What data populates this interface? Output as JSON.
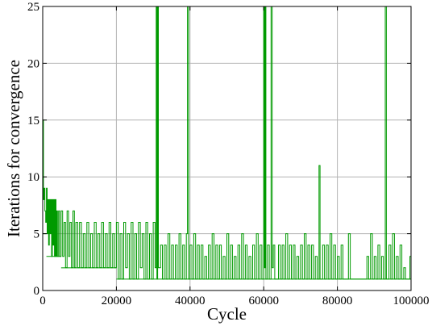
{
  "chart_data": {
    "type": "line",
    "title": "",
    "xlabel": "Cycle",
    "ylabel": "Iterations for convergence",
    "xlim": [
      0,
      100000
    ],
    "ylim": [
      0,
      25
    ],
    "xticks": [
      0,
      20000,
      40000,
      60000,
      80000,
      100000
    ],
    "yticks": [
      0,
      5,
      10,
      15,
      20,
      25
    ],
    "x_tick_labels": [
      "0",
      "20000",
      "40000",
      "60000",
      "80000",
      "100000"
    ],
    "y_tick_labels": [
      "0",
      "5",
      "10",
      "15",
      "20",
      "25"
    ],
    "grid": true,
    "legend": "none",
    "series_color": "#009a00",
    "baseline": [
      {
        "x_start": 0,
        "x_end": 1000,
        "value": 5
      },
      {
        "x_start": 1000,
        "x_end": 5000,
        "value": 3
      },
      {
        "x_start": 5000,
        "x_end": 20000,
        "value": 2
      },
      {
        "x_start": 20000,
        "x_end": 100000,
        "value": 1
      }
    ],
    "series": [
      {
        "points": [
          [
            0,
            15
          ],
          [
            200,
            8
          ],
          [
            400,
            9
          ],
          [
            600,
            7
          ],
          [
            800,
            6
          ],
          [
            1000,
            9
          ],
          [
            1200,
            5
          ],
          [
            1400,
            8
          ],
          [
            1600,
            4
          ],
          [
            1800,
            8
          ],
          [
            2000,
            5
          ],
          [
            2200,
            8
          ],
          [
            2400,
            3
          ],
          [
            2600,
            8
          ],
          [
            2800,
            4
          ],
          [
            3000,
            8
          ],
          [
            3200,
            3
          ],
          [
            3400,
            8
          ],
          [
            3600,
            3
          ],
          [
            3800,
            7
          ],
          [
            4000,
            3
          ],
          [
            4300,
            7
          ],
          [
            4600,
            3
          ],
          [
            5000,
            7
          ],
          [
            5400,
            3
          ],
          [
            5800,
            6
          ],
          [
            6200,
            2
          ],
          [
            6600,
            7
          ],
          [
            7000,
            3
          ],
          [
            7400,
            6
          ],
          [
            7800,
            2
          ],
          [
            8200,
            7
          ],
          [
            8600,
            2
          ],
          [
            9000,
            6
          ],
          [
            9500,
            2
          ],
          [
            10000,
            6
          ],
          [
            10500,
            2
          ],
          [
            11000,
            5
          ],
          [
            11500,
            2
          ],
          [
            12000,
            6
          ],
          [
            12500,
            2
          ],
          [
            13000,
            5
          ],
          [
            13500,
            2
          ],
          [
            14000,
            6
          ],
          [
            14500,
            2
          ],
          [
            15000,
            5
          ],
          [
            15500,
            2
          ],
          [
            16000,
            6
          ],
          [
            16500,
            2
          ],
          [
            17000,
            5
          ],
          [
            17500,
            2
          ],
          [
            18000,
            6
          ],
          [
            18500,
            2
          ],
          [
            19000,
            5
          ],
          [
            19500,
            2
          ],
          [
            20000,
            6
          ],
          [
            20500,
            1
          ],
          [
            21000,
            5
          ],
          [
            21500,
            1
          ],
          [
            22000,
            6
          ],
          [
            22500,
            2
          ],
          [
            23000,
            5
          ],
          [
            23500,
            1
          ],
          [
            24000,
            6
          ],
          [
            24500,
            1
          ],
          [
            25000,
            5
          ],
          [
            25500,
            1
          ],
          [
            26000,
            6
          ],
          [
            26500,
            2
          ],
          [
            27000,
            5
          ],
          [
            27500,
            1
          ],
          [
            28000,
            6
          ],
          [
            28500,
            1
          ],
          [
            29000,
            5
          ],
          [
            29500,
            1
          ],
          [
            30000,
            6
          ],
          [
            30500,
            2
          ],
          [
            30800,
            25
          ],
          [
            31000,
            1
          ],
          [
            31200,
            25
          ],
          [
            31400,
            2
          ],
          [
            32000,
            4
          ],
          [
            32500,
            1
          ],
          [
            33000,
            4
          ],
          [
            33500,
            1
          ],
          [
            34000,
            5
          ],
          [
            34500,
            1
          ],
          [
            35000,
            4
          ],
          [
            35500,
            1
          ],
          [
            36000,
            4
          ],
          [
            36500,
            1
          ],
          [
            37000,
            5
          ],
          [
            37500,
            1
          ],
          [
            38000,
            4
          ],
          [
            38500,
            1
          ],
          [
            39000,
            5
          ],
          [
            39300,
            25
          ],
          [
            39600,
            1
          ],
          [
            40000,
            4
          ],
          [
            40500,
            1
          ],
          [
            41000,
            5
          ],
          [
            41500,
            1
          ],
          [
            42000,
            4
          ],
          [
            42500,
            1
          ],
          [
            43000,
            4
          ],
          [
            43500,
            1
          ],
          [
            44000,
            3
          ],
          [
            44500,
            1
          ],
          [
            45000,
            4
          ],
          [
            45500,
            1
          ],
          [
            46000,
            5
          ],
          [
            46500,
            1
          ],
          [
            47000,
            4
          ],
          [
            47500,
            1
          ],
          [
            48000,
            4
          ],
          [
            48500,
            1
          ],
          [
            49000,
            3
          ],
          [
            49500,
            1
          ],
          [
            50000,
            5
          ],
          [
            50500,
            1
          ],
          [
            51000,
            4
          ],
          [
            51500,
            1
          ],
          [
            52000,
            3
          ],
          [
            52500,
            1
          ],
          [
            53000,
            4
          ],
          [
            53500,
            1
          ],
          [
            54000,
            5
          ],
          [
            54500,
            1
          ],
          [
            55000,
            4
          ],
          [
            55500,
            1
          ],
          [
            56000,
            3
          ],
          [
            56500,
            1
          ],
          [
            57000,
            4
          ],
          [
            57500,
            1
          ],
          [
            58000,
            5
          ],
          [
            58500,
            1
          ],
          [
            59000,
            4
          ],
          [
            59500,
            1
          ],
          [
            60000,
            25
          ],
          [
            60200,
            2
          ],
          [
            60400,
            25
          ],
          [
            60600,
            1
          ],
          [
            61000,
            4
          ],
          [
            61500,
            1
          ],
          [
            62000,
            25
          ],
          [
            62300,
            2
          ],
          [
            62600,
            4
          ],
          [
            63000,
            1
          ],
          [
            64000,
            4
          ],
          [
            64500,
            1
          ],
          [
            65000,
            4
          ],
          [
            65500,
            1
          ],
          [
            66000,
            5
          ],
          [
            66500,
            1
          ],
          [
            67000,
            4
          ],
          [
            67500,
            1
          ],
          [
            68000,
            4
          ],
          [
            68500,
            1
          ],
          [
            69000,
            3
          ],
          [
            69500,
            1
          ],
          [
            70000,
            4
          ],
          [
            70500,
            1
          ],
          [
            71000,
            5
          ],
          [
            71500,
            1
          ],
          [
            72000,
            4
          ],
          [
            72500,
            1
          ],
          [
            73000,
            4
          ],
          [
            73500,
            1
          ],
          [
            74000,
            3
          ],
          [
            74500,
            1
          ],
          [
            75000,
            11
          ],
          [
            75300,
            1
          ],
          [
            76000,
            4
          ],
          [
            76500,
            1
          ],
          [
            77000,
            4
          ],
          [
            77500,
            1
          ],
          [
            78000,
            5
          ],
          [
            78500,
            1
          ],
          [
            79000,
            4
          ],
          [
            79500,
            1
          ],
          [
            80000,
            3
          ],
          [
            80500,
            1
          ],
          [
            81000,
            4
          ],
          [
            81500,
            1
          ],
          [
            82000,
            1
          ],
          [
            83000,
            5
          ],
          [
            83500,
            1
          ],
          [
            85000,
            1
          ],
          [
            86000,
            1
          ],
          [
            87000,
            1
          ],
          [
            88000,
            3
          ],
          [
            88500,
            1
          ],
          [
            89000,
            5
          ],
          [
            89500,
            1
          ],
          [
            90000,
            3
          ],
          [
            90500,
            1
          ],
          [
            91000,
            4
          ],
          [
            91500,
            1
          ],
          [
            92000,
            3
          ],
          [
            92500,
            1
          ],
          [
            93000,
            25
          ],
          [
            93300,
            1
          ],
          [
            94000,
            4
          ],
          [
            94500,
            1
          ],
          [
            95000,
            5
          ],
          [
            95500,
            1
          ],
          [
            96000,
            3
          ],
          [
            96500,
            1
          ],
          [
            97000,
            4
          ],
          [
            97500,
            1
          ],
          [
            98000,
            2
          ],
          [
            98500,
            1
          ],
          [
            99000,
            1
          ],
          [
            99700,
            3
          ],
          [
            100000,
            1
          ]
        ]
      }
    ]
  }
}
